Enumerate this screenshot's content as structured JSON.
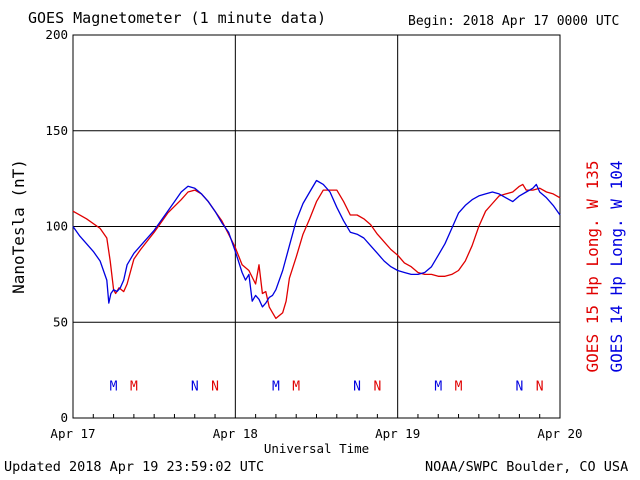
{
  "header": {
    "title": "GOES Magnetometer (1 minute data)",
    "begin": "Begin:  2018 Apr 17 0000 UTC"
  },
  "footer": {
    "updated": "Updated 2018 Apr 19 23:59:02 UTC",
    "credit": "NOAA/SWPC Boulder, CO USA"
  },
  "colors": {
    "goes15": "#e00000",
    "goes14": "#0000e0",
    "grid": "#000000"
  },
  "chart_data": {
    "type": "line",
    "title": "GOES Magnetometer (1 minute data)",
    "xlabel": "Universal Time",
    "ylabel": "NanoTesla (nT)",
    "xlim": [
      0,
      72
    ],
    "ylim": [
      0,
      200
    ],
    "x_unit": "hours since 2018 Apr 17 0000 UTC",
    "x_ticks": [
      {
        "x": 0,
        "label": "Apr 17"
      },
      {
        "x": 24,
        "label": "Apr 18"
      },
      {
        "x": 48,
        "label": "Apr 19"
      },
      {
        "x": 72,
        "label": "Apr 20"
      }
    ],
    "y_ticks": [
      0,
      50,
      100,
      150,
      200
    ],
    "grid": true,
    "series": [
      {
        "name": "GOES 15 Hp  Long. W 135",
        "color": "#e00000",
        "x": [
          0,
          2,
          4,
          5,
          5.5,
          6,
          6.3,
          6.8,
          7.5,
          8,
          9,
          10,
          12,
          14,
          16,
          17,
          18,
          19,
          20,
          21,
          22,
          23,
          24,
          25,
          26,
          27,
          27.5,
          28,
          28.5,
          29,
          29.5,
          30,
          31,
          31.5,
          32,
          33,
          34,
          35,
          36,
          37,
          38,
          39,
          40,
          41,
          42,
          43,
          44,
          45,
          46,
          47,
          48,
          49,
          50,
          51,
          52,
          53,
          54,
          55,
          56,
          57,
          58,
          59,
          60,
          61,
          62,
          63,
          64,
          65,
          66,
          66.5,
          67,
          68,
          69,
          70,
          71,
          72
        ],
        "values": [
          108,
          104,
          99,
          94,
          82,
          67,
          65,
          68,
          66,
          70,
          83,
          88,
          97,
          107,
          114,
          118,
          119,
          117,
          113,
          108,
          103,
          96,
          89,
          80,
          77,
          70,
          80,
          65,
          66,
          58,
          55,
          52,
          55,
          61,
          73,
          84,
          96,
          104,
          113,
          119,
          119,
          119,
          113,
          106,
          106,
          104,
          101,
          96,
          92,
          88,
          85,
          81,
          79,
          76,
          75,
          75,
          74,
          74,
          75,
          77,
          82,
          90,
          100,
          108,
          112,
          116,
          117,
          118,
          121,
          122,
          119,
          119,
          120,
          118,
          117,
          115
        ]
      },
      {
        "name": "GOES 14 Hp  Long. W 104",
        "color": "#0000e0",
        "x": [
          0,
          1,
          2,
          3,
          4,
          5,
          5.3,
          5.6,
          6,
          6.5,
          7,
          7.5,
          8,
          9,
          10,
          12,
          14,
          15,
          16,
          17,
          18,
          19,
          20,
          21,
          22,
          23,
          24,
          25,
          25.5,
          26,
          26.5,
          27,
          27.5,
          28,
          28.5,
          29,
          29.5,
          30,
          31,
          32,
          33,
          34,
          35,
          36,
          37,
          38,
          39,
          40,
          41,
          42,
          43,
          44,
          45,
          46,
          47,
          48,
          49,
          50,
          51,
          52,
          53,
          54,
          55,
          56,
          57,
          58,
          59,
          60,
          61,
          62,
          63,
          64,
          65,
          66,
          67,
          68,
          68.5,
          69,
          70,
          71,
          72
        ],
        "values": [
          100,
          95,
          91,
          87,
          82,
          72,
          60,
          65,
          67,
          66,
          68,
          72,
          80,
          86,
          90,
          98,
          108,
          113,
          118,
          121,
          120,
          117,
          113,
          108,
          102,
          97,
          87,
          76,
          72,
          75,
          61,
          64,
          62,
          58,
          60,
          63,
          64,
          67,
          77,
          90,
          103,
          112,
          118,
          124,
          122,
          118,
          110,
          103,
          97,
          96,
          94,
          90,
          86,
          82,
          79,
          77,
          76,
          75,
          75,
          76,
          79,
          85,
          91,
          99,
          107,
          111,
          114,
          116,
          117,
          118,
          117,
          115,
          113,
          116,
          118,
          120,
          122,
          118,
          115,
          111,
          106
        ]
      }
    ],
    "annotations": [
      {
        "text": "M",
        "x": 6,
        "color": "#0000e0"
      },
      {
        "text": "M",
        "x": 9,
        "color": "#e00000"
      },
      {
        "text": "N",
        "x": 18,
        "color": "#0000e0"
      },
      {
        "text": "N",
        "x": 21,
        "color": "#e00000"
      },
      {
        "text": "M",
        "x": 30,
        "color": "#0000e0"
      },
      {
        "text": "M",
        "x": 33,
        "color": "#e00000"
      },
      {
        "text": "N",
        "x": 42,
        "color": "#0000e0"
      },
      {
        "text": "N",
        "x": 45,
        "color": "#e00000"
      },
      {
        "text": "M",
        "x": 54,
        "color": "#0000e0"
      },
      {
        "text": "M",
        "x": 57,
        "color": "#e00000"
      },
      {
        "text": "N",
        "x": 66,
        "color": "#0000e0"
      },
      {
        "text": "N",
        "x": 69,
        "color": "#e00000"
      }
    ],
    "annotation_y": 17
  }
}
